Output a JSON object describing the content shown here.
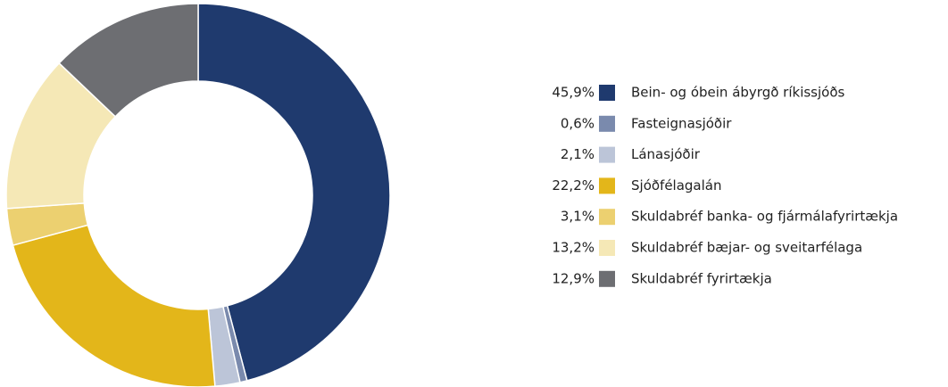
{
  "chart_data": {
    "type": "pie",
    "categories": [
      "Bein- og óbein ábyrgð ríkissjóðs",
      "Fasteignasjóðir",
      "Lánasjóðir",
      "Sjóðfélagalán",
      "Skuldabréf banka- og fjármálafyrirtækja",
      "Skuldabréf bæjar- og sveitarfélaga",
      "Skuldabréf fyrirtækja"
    ],
    "values": [
      45.9,
      0.6,
      2.1,
      22.2,
      3.1,
      13.2,
      12.9
    ],
    "value_labels": [
      "45,9%",
      "0,6%",
      "2,1%",
      "22,2%",
      "3,1%",
      "13,2%",
      "12,9%"
    ],
    "colors": [
      "#1f3a6e",
      "#7a8aad",
      "#bcc5d8",
      "#e3b61a",
      "#ecd070",
      "#f5e8b6",
      "#6d6e72"
    ]
  }
}
